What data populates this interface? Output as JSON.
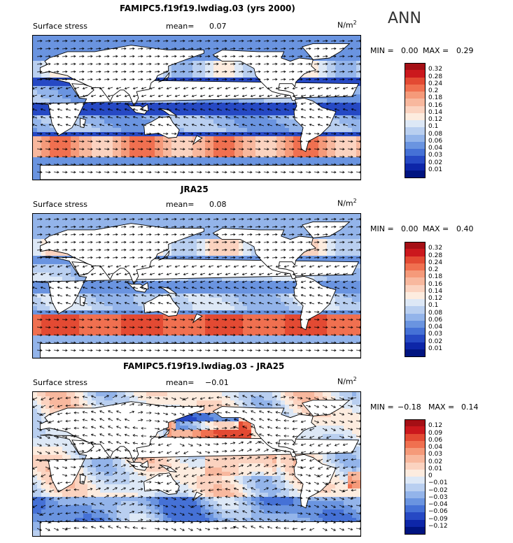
{
  "season_label": "ANN",
  "panels": [
    {
      "title": "FAMIPC5.f19f19.lwdiag.03 (yrs 2000)",
      "variable": "Surface stress",
      "mean_label": "mean=",
      "mean_value": "0.07",
      "units": "N/m",
      "units_sup": "2",
      "min_label": "MIN =",
      "min_value": "0.00",
      "max_label": "MAX =",
      "max_value": "0.29",
      "colorbar_ticks": [
        "0.32",
        "0.28",
        "0.24",
        "0.2",
        "0.18",
        "0.16",
        "0.14",
        "0.12",
        "0.1",
        "0.08",
        "0.06",
        "0.04",
        "0.03",
        "0.02",
        "0.01"
      ],
      "colorbar_colors": [
        "#a50f15",
        "#cb181d",
        "#e34a33",
        "#f07050",
        "#f59a7a",
        "#f8b89e",
        "#fbd3c0",
        "#fdecdf",
        "#dde8f6",
        "#b9cff0",
        "#93b4ea",
        "#6a94e0",
        "#4571d6",
        "#2649c4",
        "#0d26a8",
        "#001480"
      ]
    },
    {
      "title": "JRA25",
      "variable": "Surface stress",
      "mean_label": "mean=",
      "mean_value": "0.08",
      "units": "N/m",
      "units_sup": "2",
      "min_label": "MIN =",
      "min_value": "0.00",
      "max_label": "MAX =",
      "max_value": "0.40",
      "colorbar_ticks": [
        "0.32",
        "0.28",
        "0.24",
        "0.2",
        "0.18",
        "0.16",
        "0.14",
        "0.12",
        "0.1",
        "0.08",
        "0.06",
        "0.04",
        "0.03",
        "0.02",
        "0.01"
      ],
      "colorbar_colors": [
        "#a50f15",
        "#cb181d",
        "#e34a33",
        "#f07050",
        "#f59a7a",
        "#f8b89e",
        "#fbd3c0",
        "#fdecdf",
        "#dde8f6",
        "#b9cff0",
        "#93b4ea",
        "#6a94e0",
        "#4571d6",
        "#2649c4",
        "#0d26a8",
        "#001480"
      ]
    },
    {
      "title": "FAMIPC5.f19f19.lwdiag.03 - JRA25",
      "variable": "Surface stress",
      "mean_label": "mean=",
      "mean_value": "−0.01",
      "units": "N/m",
      "units_sup": "2",
      "min_label": "MIN =",
      "min_value": "−0.18",
      "max_label": "MAX =",
      "max_value": "0.14",
      "colorbar_ticks": [
        "0.12",
        "0.09",
        "0.06",
        "0.04",
        "0.03",
        "0.02",
        "0.01",
        "0",
        "−0.01",
        "−0.02",
        "−0.03",
        "−0.04",
        "−0.06",
        "−0.09",
        "−0.12"
      ],
      "colorbar_colors": [
        "#a50f15",
        "#cb181d",
        "#e34a33",
        "#f07050",
        "#f59a7a",
        "#f8b89e",
        "#fbd3c0",
        "#fdecdf",
        "#dde8f6",
        "#b9cff0",
        "#93b4ea",
        "#6a94e0",
        "#4571d6",
        "#2649c4",
        "#0d26a8",
        "#001480"
      ]
    }
  ]
}
